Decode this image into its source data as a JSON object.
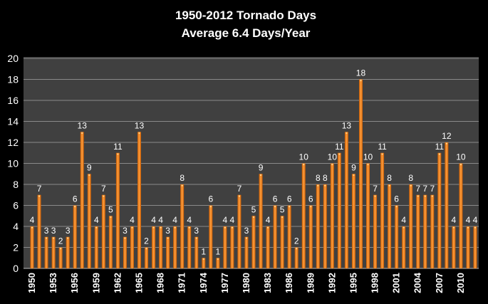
{
  "chart_data": {
    "type": "bar",
    "title": "1950-2012 Tornado Days",
    "subtitle": "Average 6.4 Days/Year",
    "xlabel": "",
    "ylabel": "",
    "ylim": [
      0,
      20
    ],
    "yticks": [
      0,
      2,
      4,
      6,
      8,
      10,
      12,
      14,
      16,
      18,
      20
    ],
    "grid": true,
    "legend": "none",
    "bar_color": "#f7931e",
    "plot_background": "#404040",
    "background": "#000000",
    "categories": [
      1950,
      1951,
      1952,
      1953,
      1954,
      1955,
      1956,
      1957,
      1958,
      1959,
      1960,
      1961,
      1962,
      1963,
      1964,
      1965,
      1966,
      1967,
      1968,
      1969,
      1970,
      1971,
      1972,
      1973,
      1974,
      1975,
      1976,
      1977,
      1978,
      1979,
      1980,
      1981,
      1982,
      1983,
      1984,
      1985,
      1986,
      1987,
      1988,
      1989,
      1990,
      1991,
      1992,
      1993,
      1994,
      1995,
      1996,
      1997,
      1998,
      1999,
      2000,
      2001,
      2002,
      2003,
      2004,
      2005,
      2006,
      2007,
      2008,
      2009,
      2010,
      2011,
      2012
    ],
    "xtick_labels": [
      "1950",
      "1953",
      "1956",
      "1959",
      "1962",
      "1965",
      "1968",
      "1971",
      "1974",
      "1977",
      "1980",
      "1983",
      "1986",
      "1989",
      "1992",
      "1995",
      "1998",
      "2001",
      "2004",
      "2007",
      "2010"
    ],
    "values": [
      4,
      7,
      3,
      3,
      2,
      3,
      6,
      13,
      9,
      4,
      7,
      5,
      11,
      3,
      4,
      13,
      2,
      4,
      4,
      3,
      4,
      8,
      4,
      3,
      1,
      6,
      1,
      4,
      4,
      7,
      3,
      5,
      9,
      4,
      6,
      5,
      6,
      2,
      10,
      6,
      8,
      8,
      10,
      11,
      13,
      9,
      18,
      10,
      7,
      11,
      8,
      6,
      4,
      8,
      7,
      7,
      7,
      11,
      12,
      4,
      10,
      4,
      4
    ]
  }
}
